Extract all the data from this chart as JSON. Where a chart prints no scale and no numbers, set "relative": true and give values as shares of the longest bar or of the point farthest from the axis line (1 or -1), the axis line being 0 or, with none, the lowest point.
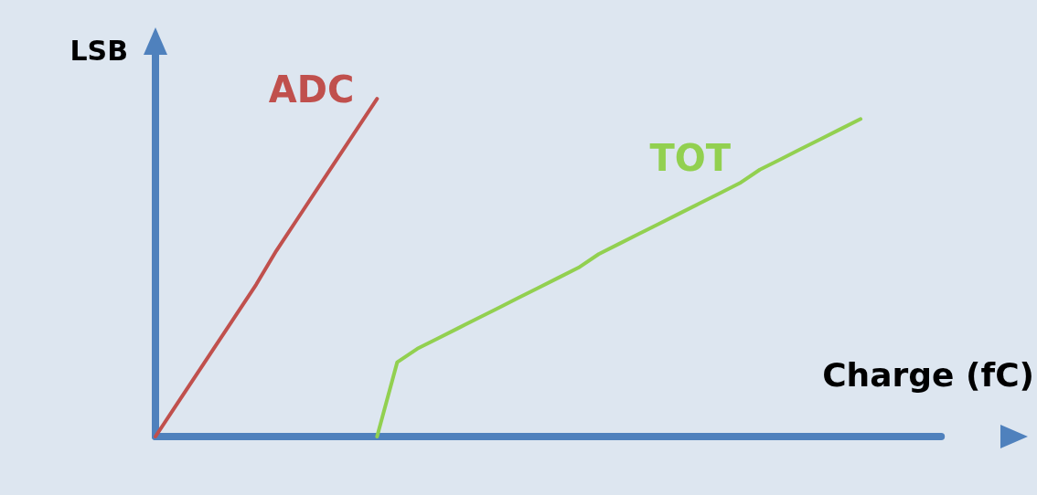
{
  "chart_data": {
    "type": "line",
    "relative": true,
    "xlabel": "Charge (fC)",
    "ylabel": "LSB",
    "marker": "none",
    "categories": [
      null,
      null,
      null,
      null,
      null,
      null,
      null,
      null,
      null,
      null,
      null,
      null,
      null,
      null,
      null,
      null,
      null,
      null,
      null,
      null,
      null,
      null,
      null,
      null,
      null,
      null,
      null,
      null,
      null,
      null,
      null,
      null,
      null,
      null,
      null,
      null,
      null,
      null,
      null,
      null
    ],
    "series": [
      {
        "name": "ADC",
        "color": "#c0504d",
        "values": [
          0,
          0.09,
          0.18,
          0.27,
          0.36,
          0.45,
          0.55,
          0.64,
          0.73,
          0.82,
          0.91,
          1,
          null,
          null,
          null,
          null,
          null,
          null,
          null,
          null,
          null,
          null,
          null,
          null,
          null,
          null,
          null,
          null,
          null,
          null,
          null,
          null,
          null,
          null,
          null,
          null,
          null,
          null,
          null,
          null
        ]
      },
      {
        "name": "TOT",
        "color": "#92d050",
        "values": [
          null,
          null,
          null,
          null,
          null,
          null,
          null,
          null,
          null,
          null,
          null,
          0,
          0.22,
          0.26,
          0.29,
          0.32,
          0.35,
          0.38,
          0.41,
          0.44,
          0.47,
          0.5,
          0.54,
          0.57,
          0.6,
          0.63,
          0.66,
          0.69,
          0.72,
          0.75,
          0.79,
          0.82,
          0.85,
          0.88,
          0.91,
          0.94,
          null,
          null,
          null,
          null
        ]
      }
    ]
  }
}
